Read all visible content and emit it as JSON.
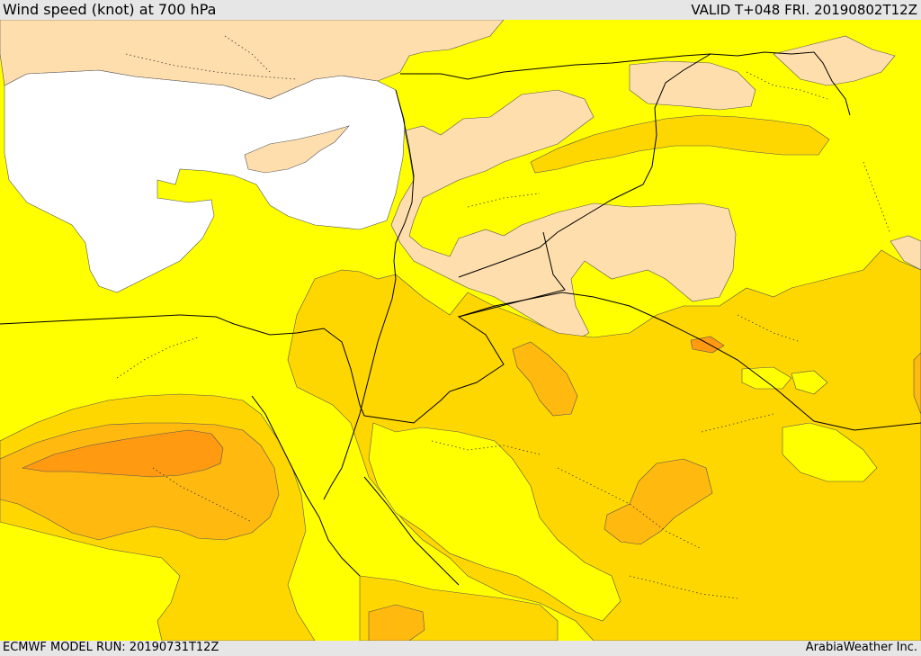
{
  "header": {
    "title": "Wind speed (knot) at 700 hPa",
    "valid": "VALID T+048 FRI. 20190802T12Z"
  },
  "footer": {
    "model_run": "ECMWF MODEL RUN: 20190731T12Z",
    "credit": "ArabiaWeather Inc."
  },
  "colors": {
    "sea_calm": "#ffffff",
    "band_low": "#ffdead",
    "band_mid": "#ffff00",
    "band_high": "#ffd700",
    "band_higher": "#ffb90f",
    "band_highest": "#ff9a11",
    "band_top": "#ff7f24",
    "boundary": "#000000",
    "contour": "#555555"
  }
}
